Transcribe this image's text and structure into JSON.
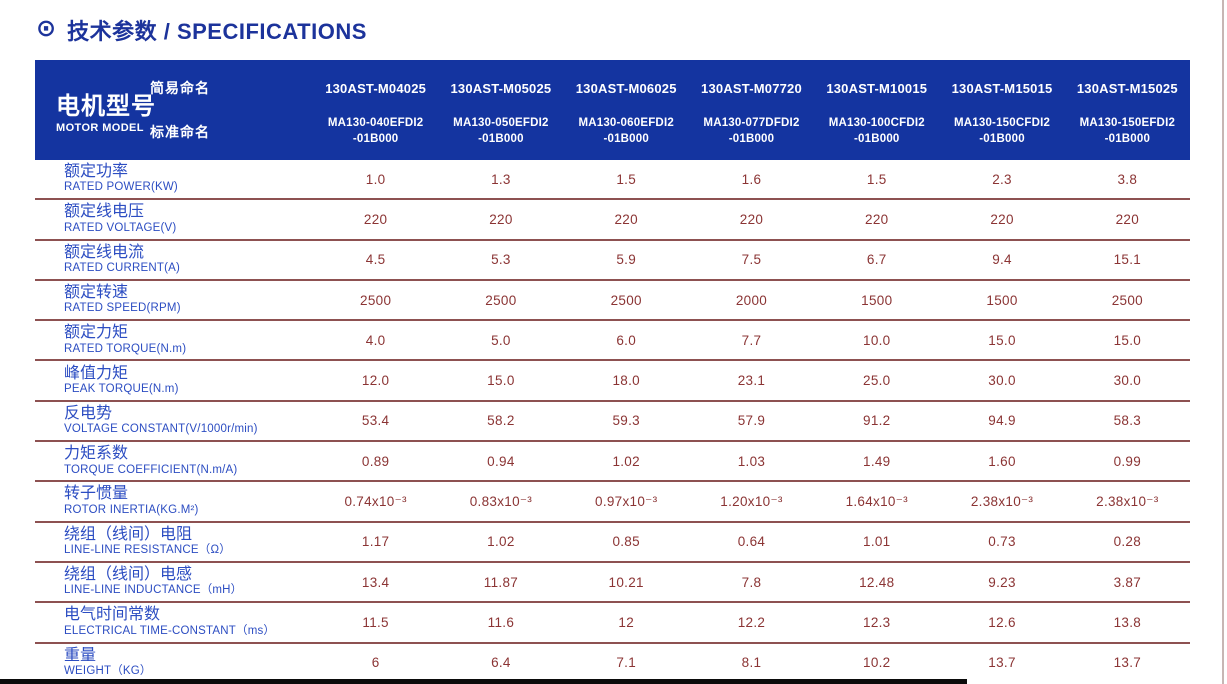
{
  "page": {
    "title_icon": "⊙",
    "title": "技术参数 / SPECIFICATIONS"
  },
  "colors": {
    "header_bg": "#1434a0",
    "label_blue": "#2c4dc2",
    "value_maroon": "#8b3434",
    "divider_maroon": "#8d5151",
    "title_blue": "#1c339b"
  },
  "table": {
    "model_header": {
      "zh": "电机型号",
      "en": "MOTOR MODEL"
    },
    "naming": {
      "simple": "简易命名",
      "standard": "标准命名"
    },
    "columns": [
      {
        "simple": "130AST-M04025",
        "standard_line1": "MA130-040EFDI2",
        "standard_line2": "-01B000"
      },
      {
        "simple": "130AST-M05025",
        "standard_line1": "MA130-050EFDI2",
        "standard_line2": "-01B000"
      },
      {
        "simple": "130AST-M06025",
        "standard_line1": "MA130-060EFDI2",
        "standard_line2": "-01B000"
      },
      {
        "simple": "130AST-M07720",
        "standard_line1": "MA130-077DFDI2",
        "standard_line2": "-01B000"
      },
      {
        "simple": "130AST-M10015",
        "standard_line1": "MA130-100CFDI2",
        "standard_line2": "-01B000"
      },
      {
        "simple": "130AST-M15015",
        "standard_line1": "MA130-150CFDI2",
        "standard_line2": "-01B000"
      },
      {
        "simple": "130AST-M15025",
        "standard_line1": "MA130-150EFDI2",
        "standard_line2": "-01B000"
      }
    ],
    "rows": [
      {
        "zh": "额定功率",
        "en": "RATED POWER(KW)",
        "values": [
          "1.0",
          "1.3",
          "1.5",
          "1.6",
          "1.5",
          "2.3",
          "3.8"
        ]
      },
      {
        "zh": "额定线电压",
        "en": "RATED VOLTAGE(V)",
        "values": [
          "220",
          "220",
          "220",
          "220",
          "220",
          "220",
          "220"
        ]
      },
      {
        "zh": "额定线电流",
        "en": "RATED CURRENT(A)",
        "values": [
          "4.5",
          "5.3",
          "5.9",
          "7.5",
          "6.7",
          "9.4",
          "15.1"
        ]
      },
      {
        "zh": "额定转速",
        "en": "RATED SPEED(RPM)",
        "values": [
          "2500",
          "2500",
          "2500",
          "2000",
          "1500",
          "1500",
          "2500"
        ]
      },
      {
        "zh": "额定力矩",
        "en": "RATED TORQUE(N.m)",
        "values": [
          "4.0",
          "5.0",
          "6.0",
          "7.7",
          "10.0",
          "15.0",
          "15.0"
        ]
      },
      {
        "zh": "峰值力矩",
        "en": "PEAK TORQUE(N.m)",
        "values": [
          "12.0",
          "15.0",
          "18.0",
          "23.1",
          "25.0",
          "30.0",
          "30.0"
        ]
      },
      {
        "zh": "反电势",
        "en": "VOLTAGE CONSTANT(V/1000r/min)",
        "values": [
          "53.4",
          "58.2",
          "59.3",
          "57.9",
          "91.2",
          "94.9",
          "58.3"
        ]
      },
      {
        "zh": "力矩系数",
        "en": "TORQUE COEFFICIENT(N.m/A)",
        "values": [
          "0.89",
          "0.94",
          "1.02",
          "1.03",
          "1.49",
          "1.60",
          "0.99"
        ]
      },
      {
        "zh": "转子惯量",
        "en": "ROTOR INERTIA(KG.M²)",
        "values": [
          "0.74x10⁻³",
          "0.83x10⁻³",
          "0.97x10⁻³",
          "1.20x10⁻³",
          "1.64x10⁻³",
          "2.38x10⁻³",
          "2.38x10⁻³"
        ]
      },
      {
        "zh": "绕组（线间）电阻",
        "en": "LINE-LINE RESISTANCE（Ω）",
        "values": [
          "1.17",
          "1.02",
          "0.85",
          "0.64",
          "1.01",
          "0.73",
          "0.28"
        ]
      },
      {
        "zh": "绕组（线间）电感",
        "en": "LINE-LINE INDUCTANCE（mH）",
        "values": [
          "13.4",
          "11.87",
          "10.21",
          "7.8",
          "12.48",
          "9.23",
          "3.87"
        ]
      },
      {
        "zh": "电气时间常数",
        "en": "ELECTRICAL TIME-CONSTANT（ms）",
        "values": [
          "11.5",
          "11.6",
          "12",
          "12.2",
          "12.3",
          "12.6",
          "13.8"
        ]
      },
      {
        "zh": "重量",
        "en": "WEIGHT（KG）",
        "values": [
          "6",
          "6.4",
          "7.1",
          "8.1",
          "10.2",
          "13.7",
          "13.7"
        ]
      }
    ]
  }
}
